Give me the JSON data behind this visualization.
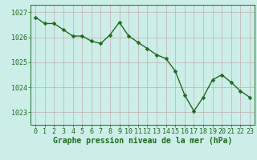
{
  "x": [
    0,
    1,
    2,
    3,
    4,
    5,
    6,
    7,
    8,
    9,
    10,
    11,
    12,
    13,
    14,
    15,
    16,
    17,
    18,
    19,
    20,
    21,
    22,
    23
  ],
  "y": [
    1026.8,
    1026.55,
    1026.55,
    1026.3,
    1026.05,
    1026.05,
    1025.85,
    1025.75,
    1026.1,
    1026.6,
    1026.05,
    1025.8,
    1025.55,
    1025.3,
    1025.15,
    1024.65,
    1023.7,
    1023.05,
    1023.6,
    1024.3,
    1024.5,
    1024.2,
    1023.85,
    1023.6
  ],
  "line_color": "#1e6b1e",
  "marker": "D",
  "marker_size": 2.5,
  "bg_color": "#cceee8",
  "grid_color": "#c4b8b8",
  "xlabel": "Graphe pression niveau de la mer (hPa)",
  "xlabel_color": "#1e6b1e",
  "tick_color": "#1e6b1e",
  "ylim": [
    1022.5,
    1027.3
  ],
  "yticks": [
    1023,
    1024,
    1025,
    1026,
    1027
  ],
  "xticks": [
    0,
    1,
    2,
    3,
    4,
    5,
    6,
    7,
    8,
    9,
    10,
    11,
    12,
    13,
    14,
    15,
    16,
    17,
    18,
    19,
    20,
    21,
    22,
    23
  ],
  "font_size_xlabel": 7,
  "font_size_ticks": 6
}
